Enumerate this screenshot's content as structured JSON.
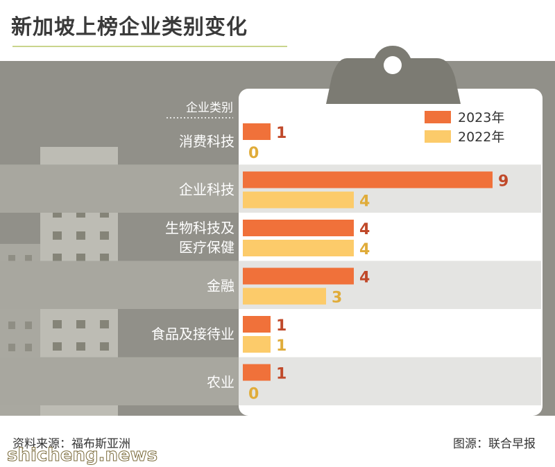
{
  "title": "新加坡上榜企业类别变化",
  "footer": {
    "source": "资料来源：福布斯亚洲",
    "credit": "图源：联合早报"
  },
  "watermark": "shicheng.news",
  "colors": {
    "series_2023": "#f0713a",
    "series_2022": "#fccb6a",
    "value_2023": "#c0492a",
    "value_2022": "#e0ac3a",
    "band": "#e4e4e2",
    "panel": "#919089",
    "building": "#b9b8b0"
  },
  "chart_data": {
    "type": "bar",
    "orientation": "horizontal",
    "category_header": "企业类别",
    "categories": [
      "消费科技",
      "企业科技",
      "生物科技及\n医疗保健",
      "金融",
      "食品及接待业",
      "农业"
    ],
    "series": [
      {
        "name": "2023年",
        "values": [
          1,
          9,
          4,
          4,
          1,
          1
        ]
      },
      {
        "name": "2022年",
        "values": [
          0,
          4,
          4,
          3,
          1,
          0
        ]
      }
    ],
    "xlim": [
      0,
      9
    ],
    "legend_position": "top-right",
    "grid": false
  }
}
